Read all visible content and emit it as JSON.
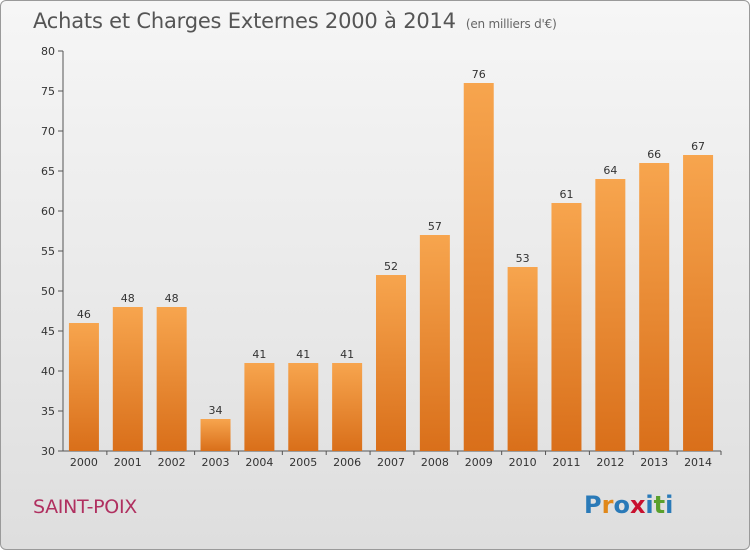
{
  "title": "Achats et Charges Externes 2000 à 2014",
  "subtitle": "(en milliers d'€)",
  "city": "SAINT-POIX",
  "logo": {
    "text": "Proxiti",
    "letters": [
      "P",
      "r",
      "o",
      "x",
      "i",
      "t",
      "i"
    ],
    "colors": [
      "#2a7ab8",
      "#e0881a",
      "#2a7ab8",
      "#c8102e",
      "#2a7ab8",
      "#5aa02c",
      "#2a7ab8"
    ]
  },
  "colors": {
    "bar_top": "#f7a54e",
    "bar_bottom": "#d96f1a",
    "city": "#b03060"
  },
  "chart_data": {
    "type": "bar",
    "title": "Achats et Charges Externes 2000 à 2014",
    "subtitle": "(en milliers d'€)",
    "categories": [
      "2000",
      "2001",
      "2002",
      "2003",
      "2004",
      "2005",
      "2006",
      "2007",
      "2008",
      "2009",
      "2010",
      "2011",
      "2012",
      "2013",
      "2014"
    ],
    "values": [
      46,
      48,
      48,
      34,
      41,
      41,
      41,
      52,
      57,
      76,
      53,
      61,
      64,
      66,
      67
    ],
    "ylim": [
      30,
      80
    ],
    "yticks": [
      30,
      35,
      40,
      45,
      50,
      55,
      60,
      65,
      70,
      75,
      80
    ],
    "grid": false,
    "data_labels": true
  }
}
